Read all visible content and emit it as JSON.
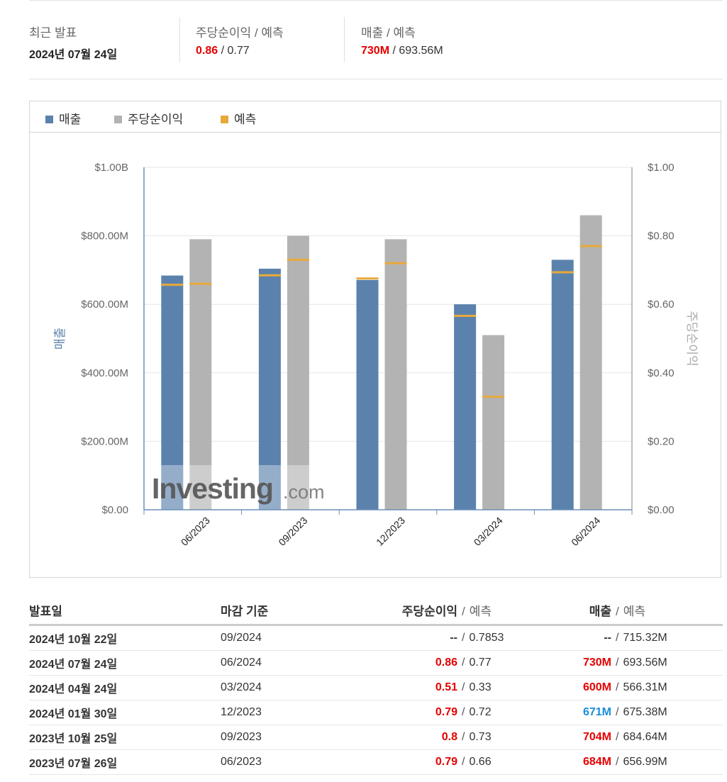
{
  "summary": {
    "last_release": {
      "label": "최근 발표",
      "value": "2024년 07월 24일"
    },
    "eps": {
      "label_main": "주당순이익",
      "label_sep": " / ",
      "label_sub": "예측",
      "actual": "0.86",
      "sep": " / ",
      "forecast": "0.77"
    },
    "revenue": {
      "label_main": "매출",
      "label_sep": " / ",
      "label_sub": "예측",
      "actual": "730M",
      "sep": " / ",
      "forecast": "693.56M"
    }
  },
  "legend": {
    "revenue": "매출",
    "eps": "주당순이익",
    "forecast": "예측"
  },
  "colors": {
    "revenue": "#5b82ad",
    "eps": "#b3b3b3",
    "forecast": "#e8a93a",
    "beat": "#e40000",
    "miss": "#1a8dd8"
  },
  "watermark": {
    "main": "Investing",
    "suffix": ".com"
  },
  "chart_data": {
    "type": "bar",
    "categories": [
      "06/2023",
      "09/2023",
      "12/2023",
      "03/2024",
      "06/2024"
    ],
    "series": [
      {
        "name": "매출",
        "axis": "left",
        "values": [
          684,
          704,
          671,
          600,
          730
        ],
        "forecast": [
          656.99,
          684.64,
          675.38,
          566.31,
          693.56
        ]
      },
      {
        "name": "주당순이익",
        "axis": "right",
        "values": [
          0.79,
          0.8,
          0.79,
          0.51,
          0.86
        ],
        "forecast": [
          0.66,
          0.73,
          0.72,
          0.33,
          0.77
        ]
      }
    ],
    "left_axis": {
      "label": "매출",
      "ylim": [
        0,
        1000
      ],
      "ticks": [
        "$0.00",
        "$200.00M",
        "$400.00M",
        "$600.00M",
        "$800.00M",
        "$1.00B"
      ]
    },
    "right_axis": {
      "label": "주당순이익",
      "ylim": [
        0,
        1
      ],
      "ticks": [
        "$0.00",
        "$0.20",
        "$0.40",
        "$0.60",
        "$0.80",
        "$1.00"
      ]
    },
    "grid": true,
    "legend_position": "top-left"
  },
  "table": {
    "headers": {
      "date": "발표일",
      "period": "마감 기준",
      "eps_main": "주당순이익",
      "eps_sub": "예측",
      "rev_main": "매출",
      "rev_sub": "예측",
      "slash": "/"
    },
    "rows": [
      {
        "date": "2024년 10월 22일",
        "period": "09/2024",
        "eps": "--",
        "eps_forecast": "0.7853",
        "rev": "--",
        "rev_forecast": "715.32M",
        "eps_class": "",
        "rev_class": ""
      },
      {
        "date": "2024년 07월 24일",
        "period": "06/2024",
        "eps": "0.86",
        "eps_forecast": "0.77",
        "rev": "730M",
        "rev_forecast": "693.56M",
        "eps_class": "red",
        "rev_class": "red"
      },
      {
        "date": "2024년 04월 24일",
        "period": "03/2024",
        "eps": "0.51",
        "eps_forecast": "0.33",
        "rev": "600M",
        "rev_forecast": "566.31M",
        "eps_class": "red",
        "rev_class": "red"
      },
      {
        "date": "2024년 01월 30일",
        "period": "12/2023",
        "eps": "0.79",
        "eps_forecast": "0.72",
        "rev": "671M",
        "rev_forecast": "675.38M",
        "eps_class": "red",
        "rev_class": "blue"
      },
      {
        "date": "2023년 10월 25일",
        "period": "09/2023",
        "eps": "0.8",
        "eps_forecast": "0.73",
        "rev": "704M",
        "rev_forecast": "684.64M",
        "eps_class": "red",
        "rev_class": "red"
      },
      {
        "date": "2023년 07월 26일",
        "period": "06/2023",
        "eps": "0.79",
        "eps_forecast": "0.66",
        "rev": "684M",
        "rev_forecast": "656.99M",
        "eps_class": "red",
        "rev_class": "red"
      }
    ]
  }
}
